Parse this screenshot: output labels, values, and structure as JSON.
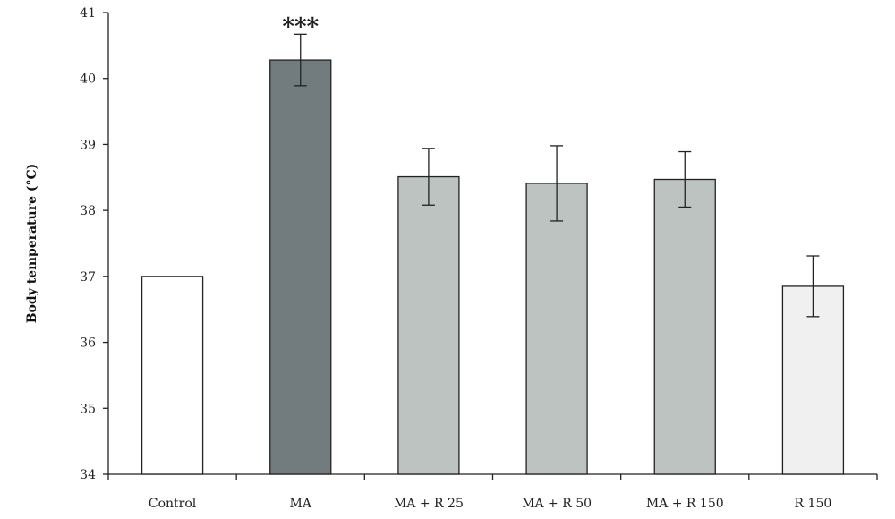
{
  "chart_data": {
    "type": "bar",
    "title": "",
    "xlabel": "",
    "ylabel": "Body temperature (°C)",
    "ylim": [
      34,
      41
    ],
    "yticks": [
      "34",
      "35",
      "36",
      "37",
      "38",
      "39",
      "40",
      "41"
    ],
    "grid": false,
    "categories": [
      "Control",
      "MA",
      "MA + R 25",
      "MA + R 50",
      "MA + R 150",
      "R 150"
    ],
    "values": [
      37.0,
      40.28,
      38.51,
      38.41,
      38.47,
      36.85
    ],
    "error": [
      0,
      0.39,
      0.43,
      0.57,
      0.42,
      0.46
    ],
    "bar_colors": [
      "#ffffff",
      "#727c7e",
      "#bcc3c1",
      "#bcc3c1",
      "#bcc3c1",
      "#eff0ef"
    ],
    "annotations": [
      {
        "category": "MA",
        "text": "***"
      }
    ]
  }
}
